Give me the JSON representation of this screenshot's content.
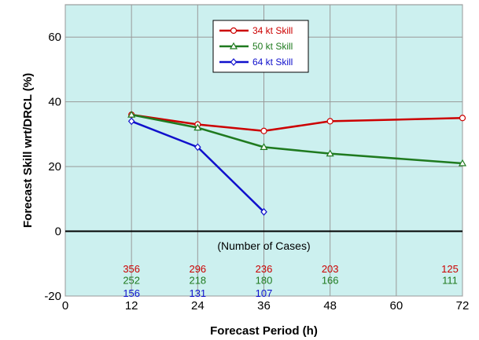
{
  "chart_data": {
    "type": "line",
    "xlabel": "Forecast Period (h)",
    "ylabel": "Forecast Skill wrt/DRCL (%)",
    "xlim": [
      0,
      72
    ],
    "ylim": [
      -20,
      70
    ],
    "x_ticks": [
      0,
      12,
      24,
      36,
      48,
      60,
      72
    ],
    "y_ticks": [
      -20,
      0,
      20,
      40,
      60
    ],
    "grid": true,
    "legend_position": "top-center",
    "background_color": "#ccf0ef",
    "series": [
      {
        "name": "34 kt Skill",
        "color": "#cc0000",
        "marker": "circle",
        "x": [
          12,
          24,
          36,
          48,
          72
        ],
        "values": [
          36,
          33,
          31,
          34,
          35
        ],
        "cases": [
          "356",
          "296",
          "236",
          "203",
          "125"
        ]
      },
      {
        "name": "50 kt Skill",
        "color": "#1f7a1f",
        "marker": "triangle",
        "x": [
          12,
          24,
          36,
          48,
          72
        ],
        "values": [
          36,
          32,
          26,
          24,
          21
        ],
        "cases": [
          "252",
          "218",
          "180",
          "166",
          "111"
        ]
      },
      {
        "name": "64 kt Skill",
        "color": "#1010cc",
        "marker": "diamond",
        "x": [
          12,
          24,
          36
        ],
        "values": [
          34,
          26,
          6
        ],
        "cases": [
          "156",
          "131",
          "107"
        ]
      }
    ],
    "annotations": [
      {
        "text": "(Number of Cases)",
        "x": 36,
        "y": -4.5
      }
    ],
    "cases_rows_y": [
      -11.5,
      -15,
      -19
    ]
  }
}
